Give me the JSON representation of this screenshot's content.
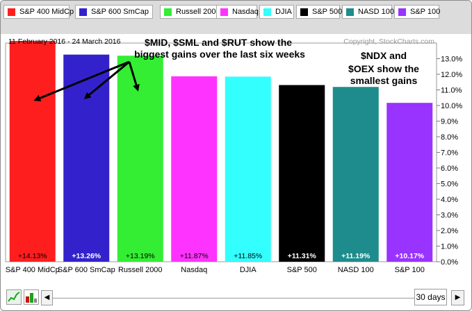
{
  "legend": {
    "items": [
      {
        "label": "S&P 400 MidCp",
        "color": "#ff1e1e"
      },
      {
        "label": "S&P 600 SmCap",
        "color": "#3322cc"
      },
      {
        "label": "Russell 2000",
        "color": "#33ee33"
      },
      {
        "label": "Nasdaq",
        "color": "#ff33ff"
      },
      {
        "label": "DJIA",
        "color": "#33ffff"
      },
      {
        "label": "S&P 500",
        "color": "#000000"
      },
      {
        "label": "NASD 100",
        "color": "#1e8c8c"
      },
      {
        "label": "S&P 100",
        "color": "#9933ff"
      }
    ]
  },
  "chart_data": {
    "type": "bar",
    "title": "",
    "date_range": "11 February 2016 - 24 March 2016",
    "copyright": "Copyright, StockCharts.com",
    "categories": [
      "S&P 400 MidCp",
      "S&P 600 SmCap",
      "Russell 2000",
      "Nasdaq",
      "DJIA",
      "S&P 500",
      "NASD 100",
      "S&P 100"
    ],
    "values": [
      14.13,
      13.26,
      13.19,
      11.87,
      11.85,
      11.31,
      11.19,
      10.17
    ],
    "value_labels": [
      "+14.13%",
      "+13.26%",
      "+13.19%",
      "+11.87%",
      "+11.85%",
      "+11.31%",
      "+11.19%",
      "+10.17%"
    ],
    "colors": [
      "#ff1e1e",
      "#3322cc",
      "#33ee33",
      "#ff33ff",
      "#33ffff",
      "#000000",
      "#1e8c8c",
      "#9933ff"
    ],
    "value_label_colors": [
      "#000000",
      "#ffffff",
      "#000000",
      "#000000",
      "#000000",
      "#ffffff",
      "#ffffff",
      "#ffffff"
    ],
    "ylim": [
      0,
      14
    ],
    "yticks": [
      0,
      1,
      2,
      3,
      4,
      5,
      6,
      7,
      8,
      9,
      10,
      11,
      12,
      13
    ],
    "ytick_labels": [
      "0.0%",
      "1.0%",
      "2.0%",
      "3.0%",
      "4.0%",
      "5.0%",
      "6.0%",
      "7.0%",
      "8.0%",
      "9.0%",
      "10.0%",
      "11.0%",
      "12.0%",
      "13.0%"
    ],
    "y_axis_side": "right",
    "grid": false,
    "annotations": [
      {
        "lines": [
          "$MID, $SML and $RUT show the",
          "biggest gains over the last six weeks"
        ],
        "arrows_to": [
          "S&P 400 MidCp",
          "S&P 600 SmCap",
          "Russell 2000"
        ]
      },
      {
        "lines": [
          "$NDX and",
          "$OEX show the",
          "smallest gains"
        ]
      }
    ]
  },
  "controls": {
    "period": "30 days",
    "prev_arrow": "◀",
    "next_arrow": "▶"
  }
}
